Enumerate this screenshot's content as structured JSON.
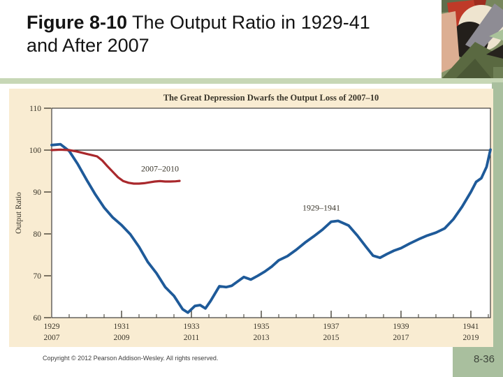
{
  "slide": {
    "title": {
      "figure_label": "Figure 8-10",
      "title_rest": "  The Output Ratio in 1929-41 and After 2007"
    },
    "footer": "Copyright © 2012 Pearson Addison-Wesley. All rights reserved.",
    "page_number": "8-36"
  },
  "colors": {
    "panel_cream": "#f9ecd2",
    "band_green": "#c7d7b6",
    "sidebar_green": "#a9bf9e",
    "blue_series": "#1e5a99",
    "red_series": "#a9282c",
    "chart_text": "#39352a",
    "axis_black": "#1a1a1a"
  },
  "chart_data": {
    "type": "line",
    "title": "The Great Depression Dwarfs the Output Loss of 2007–10",
    "ylabel": "Output Ratio",
    "xlabel": "",
    "ylim": [
      60,
      110
    ],
    "xlim": [
      1929,
      1941.56
    ],
    "y_ticks": [
      110,
      100,
      90,
      80,
      70,
      60
    ],
    "x_tick_years": [
      1929,
      1931,
      1933,
      1935,
      1937,
      1939,
      1941
    ],
    "x_labels_top": [
      "1929",
      "1931",
      "1933",
      "1935",
      "1937",
      "1939",
      "1941"
    ],
    "x_labels_bottom": [
      "2007",
      "2009",
      "2011",
      "2013",
      "2015",
      "2017",
      "2019"
    ],
    "minor_tick_step": 0.5,
    "grid": false,
    "reference_line_y": 100,
    "legend_position": "inline-annotations",
    "series": [
      {
        "name": "1929–1941",
        "color": "#1e5a99",
        "width": 3.8,
        "label_anchor": {
          "x": 1936.72,
          "y": 85.6
        },
        "x": [
          1929.0,
          1929.25,
          1929.5,
          1929.75,
          1930.0,
          1930.25,
          1930.5,
          1930.75,
          1931.0,
          1931.25,
          1931.5,
          1931.75,
          1932.0,
          1932.25,
          1932.5,
          1932.75,
          1932.9,
          1933.1,
          1933.25,
          1933.4,
          1933.55,
          1933.8,
          1934.0,
          1934.15,
          1934.3,
          1934.5,
          1934.7,
          1934.9,
          1935.1,
          1935.3,
          1935.5,
          1935.75,
          1936.0,
          1936.25,
          1936.5,
          1936.75,
          1937.0,
          1937.2,
          1937.5,
          1937.75,
          1938.0,
          1938.2,
          1938.4,
          1938.6,
          1938.8,
          1939.0,
          1939.25,
          1939.5,
          1939.75,
          1940.0,
          1940.25,
          1940.5,
          1940.75,
          1941.0,
          1941.15,
          1941.3,
          1941.45,
          1941.56
        ],
        "values": [
          101.2,
          101.4,
          99.8,
          96.6,
          92.9,
          89.4,
          86.3,
          83.9,
          82.1,
          79.9,
          76.9,
          73.3,
          70.6,
          67.3,
          65.2,
          62.0,
          61.2,
          62.8,
          63.0,
          62.2,
          64.0,
          67.5,
          67.3,
          67.6,
          68.5,
          69.7,
          69.1,
          70.0,
          71.0,
          72.2,
          73.7,
          74.7,
          76.2,
          77.9,
          79.4,
          81.0,
          82.9,
          83.1,
          82.0,
          79.6,
          76.9,
          74.8,
          74.3,
          75.2,
          76.0,
          76.6,
          77.7,
          78.7,
          79.6,
          80.3,
          81.3,
          83.5,
          86.5,
          90.0,
          92.4,
          93.3,
          96.0,
          100.1
        ]
      },
      {
        "name": "2007–2010",
        "color": "#a9282c",
        "width": 3.2,
        "x_offset_years": -78,
        "label_anchor": {
          "x": 1932.1,
          "y": 94.9
        },
        "x": [
          2007.0,
          2007.25,
          2007.5,
          2007.7,
          2007.85,
          2008.0,
          2008.15,
          2008.3,
          2008.45,
          2008.6,
          2008.75,
          2008.9,
          2009.05,
          2009.2,
          2009.35,
          2009.5,
          2009.65,
          2009.8,
          2009.95,
          2010.1,
          2010.25,
          2010.4,
          2010.55,
          2010.66
        ],
        "values": [
          100.0,
          100.1,
          100.0,
          99.7,
          99.4,
          99.1,
          98.8,
          98.5,
          97.5,
          96.1,
          94.8,
          93.5,
          92.6,
          92.2,
          92.0,
          92.0,
          92.1,
          92.3,
          92.5,
          92.6,
          92.5,
          92.5,
          92.55,
          92.65
        ]
      }
    ]
  }
}
